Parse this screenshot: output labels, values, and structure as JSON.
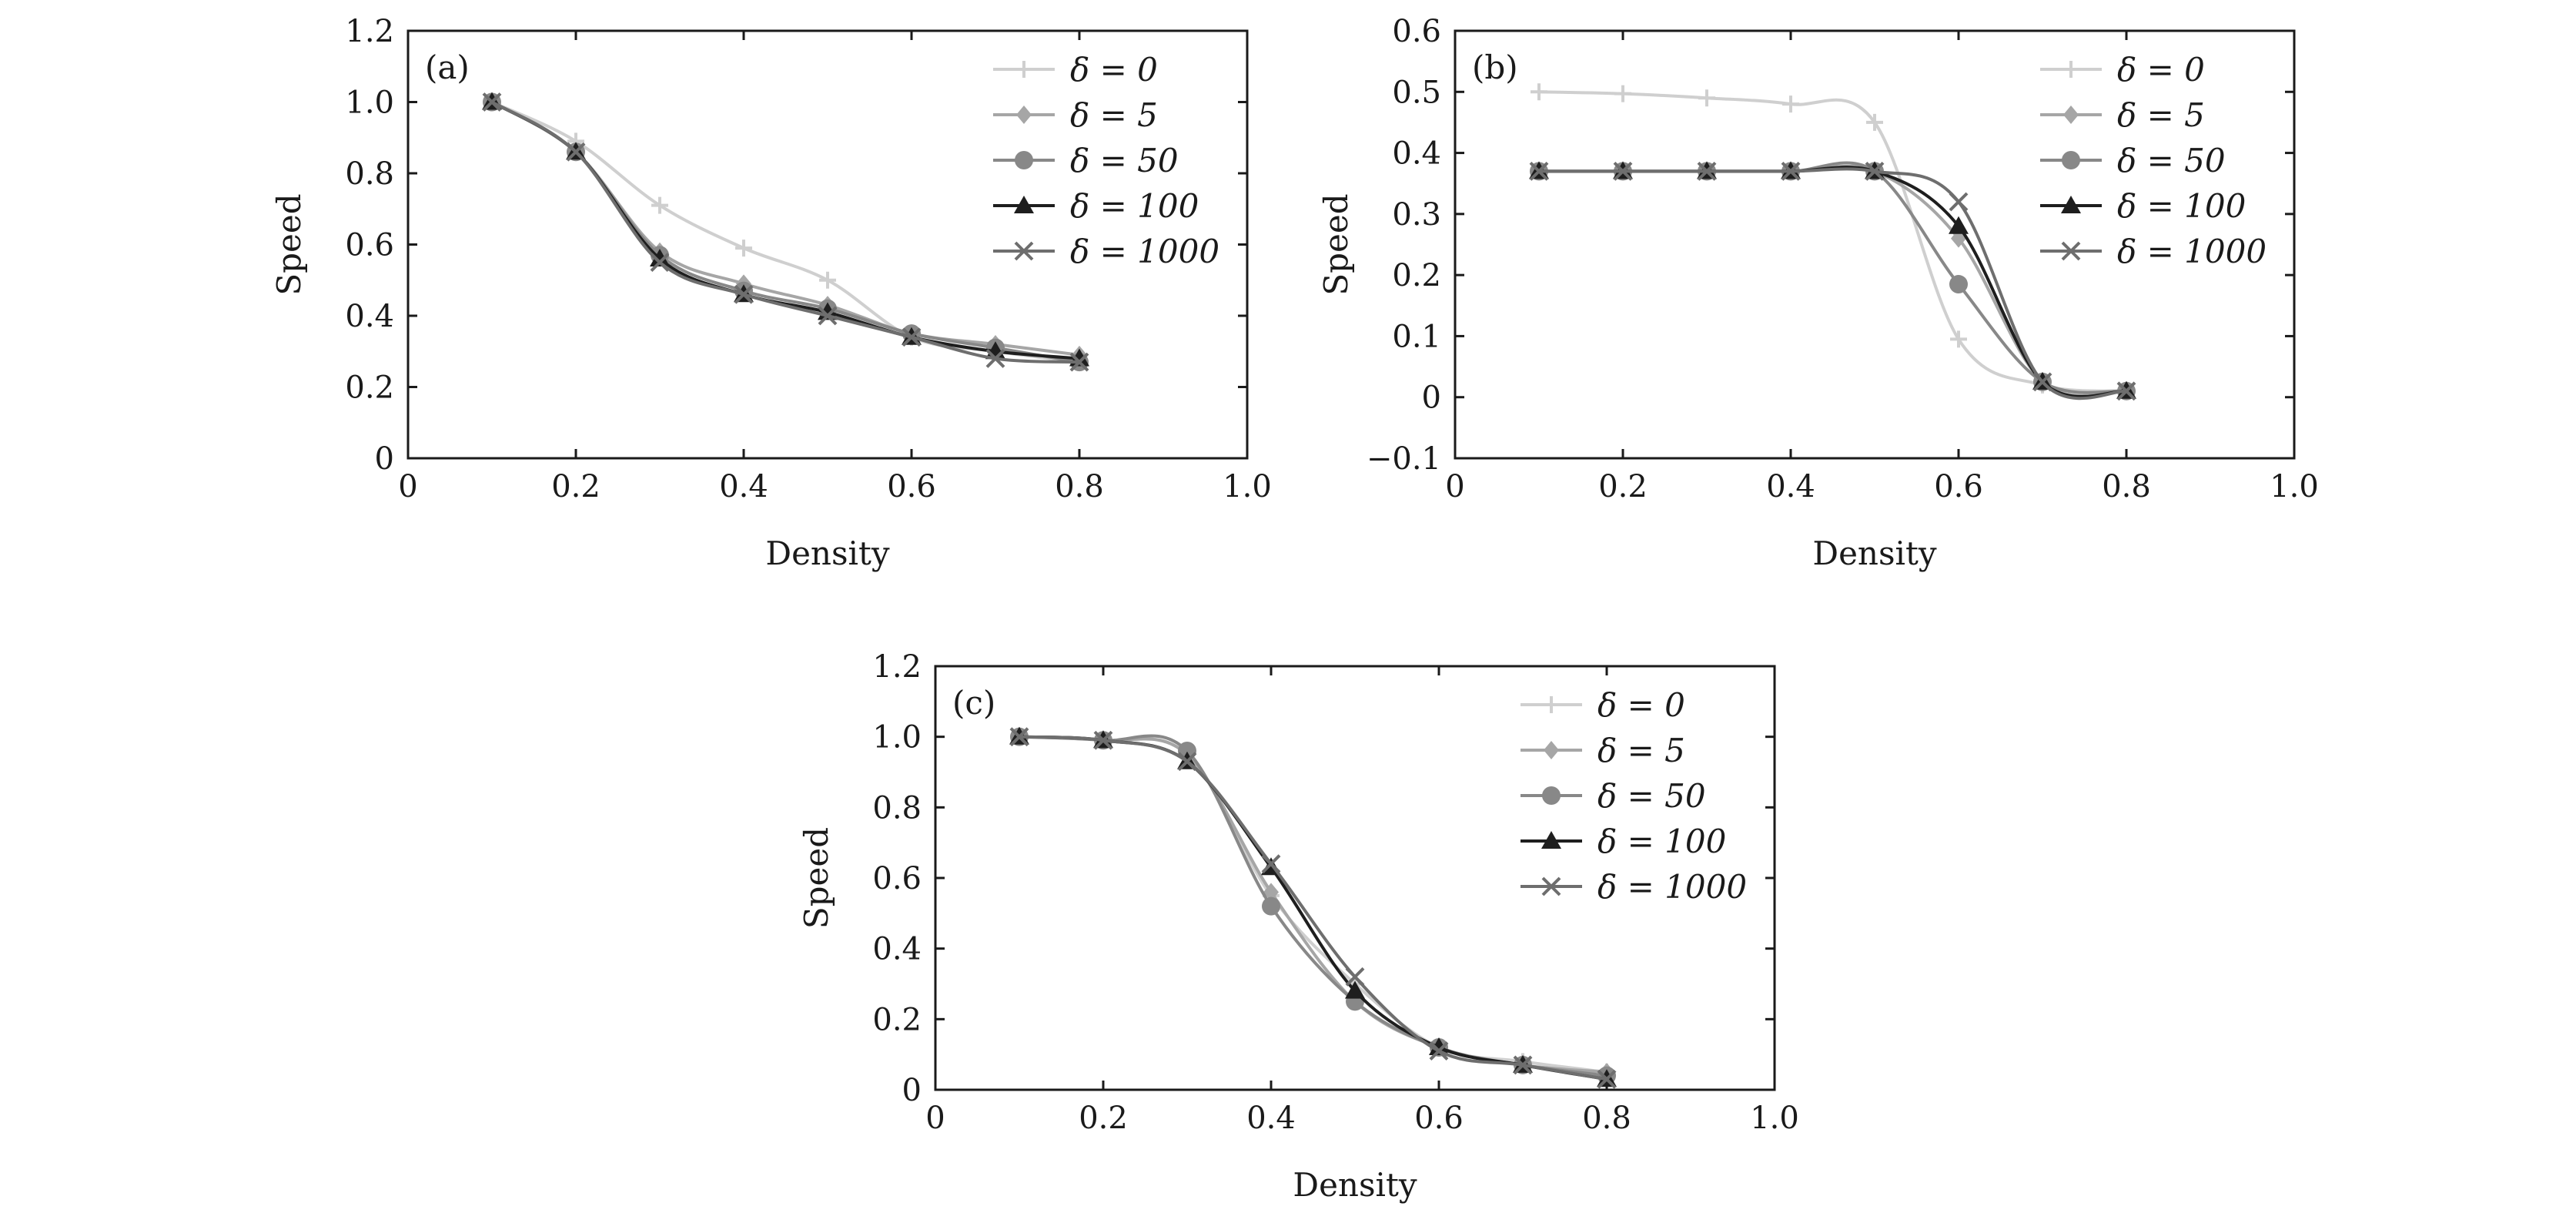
{
  "figure": {
    "panels": [
      "(a)",
      "(b)",
      "(c)"
    ]
  },
  "chart_data": [
    {
      "type": "line",
      "panel_label": "(a)",
      "xlabel": "Density",
      "ylabel": "Speed",
      "xlim": [
        0,
        1.0
      ],
      "ylim": [
        0,
        1.2
      ],
      "xticks": [
        "0",
        "0.2",
        "0.4",
        "0.6",
        "0.8",
        "1.0"
      ],
      "yticks": [
        "0",
        "0.2",
        "0.4",
        "0.6",
        "0.8",
        "1.0",
        "1.2"
      ],
      "legend_position": "top-right",
      "grid": false,
      "x": [
        0.1,
        0.2,
        0.3,
        0.4,
        0.5,
        0.6,
        0.7,
        0.8
      ],
      "series": [
        {
          "name": "δ = 0",
          "color": "#cfcfcf",
          "marker": "plus",
          "values": [
            1.0,
            0.89,
            0.71,
            0.59,
            0.5,
            0.34,
            0.3,
            0.27
          ]
        },
        {
          "name": "δ = 5",
          "color": "#a6a6a6",
          "marker": "diamond",
          "values": [
            1.0,
            0.86,
            0.58,
            0.49,
            0.43,
            0.35,
            0.32,
            0.29
          ]
        },
        {
          "name": "δ = 50",
          "color": "#888888",
          "marker": "circle",
          "values": [
            1.0,
            0.86,
            0.57,
            0.47,
            0.42,
            0.35,
            0.31,
            0.27
          ]
        },
        {
          "name": "δ = 100",
          "color": "#1e1e1e",
          "marker": "triangle",
          "values": [
            1.0,
            0.86,
            0.56,
            0.46,
            0.41,
            0.34,
            0.3,
            0.28
          ]
        },
        {
          "name": "δ = 1000",
          "color": "#6e6e6e",
          "marker": "cross",
          "values": [
            1.0,
            0.86,
            0.55,
            0.46,
            0.4,
            0.34,
            0.28,
            0.27
          ]
        }
      ]
    },
    {
      "type": "line",
      "panel_label": "(b)",
      "xlabel": "Density",
      "ylabel": "Speed",
      "xlim": [
        0,
        1.0
      ],
      "ylim": [
        -0.1,
        0.6
      ],
      "xticks": [
        "0",
        "0.2",
        "0.4",
        "0.6",
        "0.8",
        "1.0"
      ],
      "yticks": [
        "−0.1",
        "0",
        "0.1",
        "0.2",
        "0.3",
        "0.4",
        "0.5",
        "0.6"
      ],
      "legend_position": "top-right",
      "grid": false,
      "x": [
        0.1,
        0.2,
        0.3,
        0.4,
        0.5,
        0.6,
        0.7,
        0.8
      ],
      "series": [
        {
          "name": "δ = 0",
          "color": "#cfcfcf",
          "marker": "plus",
          "values": [
            0.5,
            0.497,
            0.49,
            0.48,
            0.45,
            0.095,
            0.02,
            0.01
          ]
        },
        {
          "name": "δ = 5",
          "color": "#a6a6a6",
          "marker": "diamond",
          "values": [
            0.37,
            0.37,
            0.37,
            0.37,
            0.37,
            0.26,
            0.025,
            0.01
          ]
        },
        {
          "name": "δ = 50",
          "color": "#888888",
          "marker": "circle",
          "values": [
            0.37,
            0.37,
            0.37,
            0.37,
            0.37,
            0.185,
            0.025,
            0.01
          ]
        },
        {
          "name": "δ = 100",
          "color": "#1e1e1e",
          "marker": "triangle",
          "values": [
            0.37,
            0.37,
            0.37,
            0.37,
            0.37,
            0.28,
            0.025,
            0.01
          ]
        },
        {
          "name": "δ = 1000",
          "color": "#6e6e6e",
          "marker": "cross",
          "values": [
            0.37,
            0.37,
            0.37,
            0.37,
            0.37,
            0.32,
            0.025,
            0.01
          ]
        }
      ]
    },
    {
      "type": "line",
      "panel_label": "(c)",
      "xlabel": "Density",
      "ylabel": "Speed",
      "xlim": [
        0,
        1.0
      ],
      "ylim": [
        0,
        1.2
      ],
      "xticks": [
        "0",
        "0.2",
        "0.4",
        "0.6",
        "0.8",
        "1.0"
      ],
      "yticks": [
        "0",
        "0.2",
        "0.4",
        "0.6",
        "0.8",
        "1.0",
        "1.2"
      ],
      "legend_position": "top-right",
      "grid": false,
      "x": [
        0.1,
        0.2,
        0.3,
        0.4,
        0.5,
        0.6,
        0.7,
        0.8
      ],
      "series": [
        {
          "name": "δ = 0",
          "color": "#cfcfcf",
          "marker": "plus",
          "values": [
            1.0,
            0.99,
            0.95,
            0.55,
            0.3,
            0.12,
            0.08,
            0.05
          ]
        },
        {
          "name": "δ = 5",
          "color": "#a6a6a6",
          "marker": "diamond",
          "values": [
            1.0,
            0.99,
            0.95,
            0.56,
            0.25,
            0.12,
            0.07,
            0.05
          ]
        },
        {
          "name": "δ = 50",
          "color": "#888888",
          "marker": "circle",
          "values": [
            1.0,
            0.99,
            0.96,
            0.52,
            0.25,
            0.12,
            0.07,
            0.04
          ]
        },
        {
          "name": "δ = 100",
          "color": "#1e1e1e",
          "marker": "triangle",
          "values": [
            1.0,
            0.99,
            0.93,
            0.63,
            0.28,
            0.12,
            0.07,
            0.03
          ]
        },
        {
          "name": "δ = 1000",
          "color": "#6e6e6e",
          "marker": "cross",
          "values": [
            1.0,
            0.99,
            0.93,
            0.64,
            0.32,
            0.11,
            0.07,
            0.03
          ]
        }
      ]
    }
  ]
}
